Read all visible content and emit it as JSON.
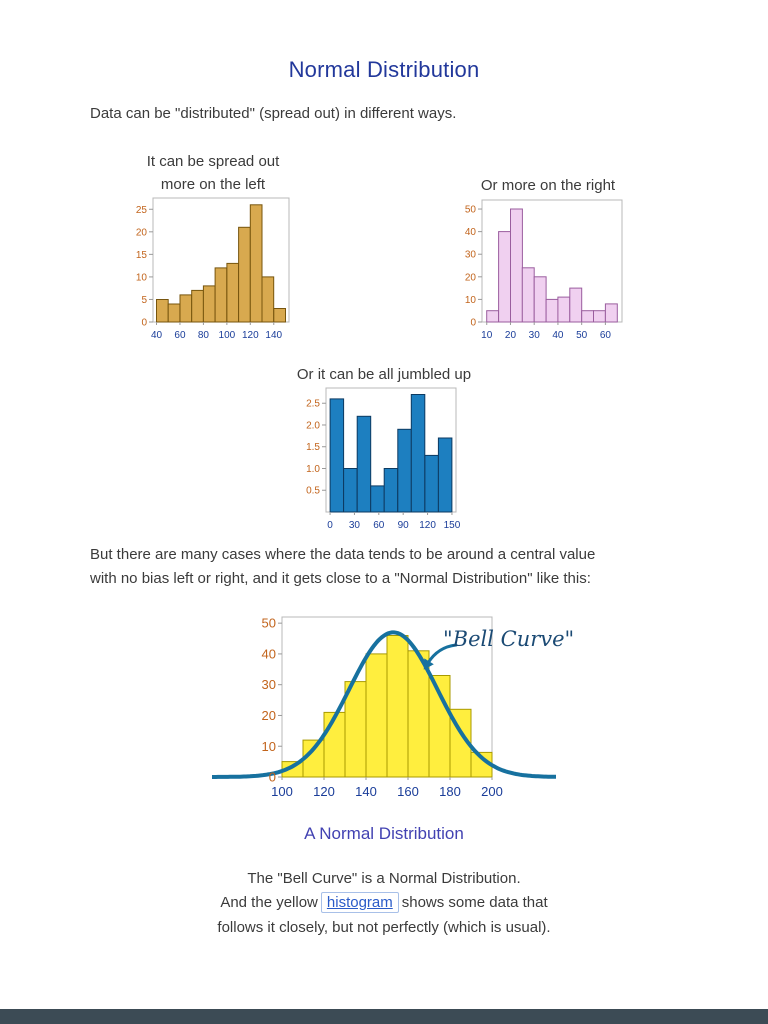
{
  "page": {
    "title": "Normal Distribution",
    "intro": "Data can be \"distributed\" (spread out) in different ways.",
    "central_line1": "But there are many cases where the data tends to be around a central value",
    "central_line2": "with no bias left or right, and it gets close to a \"Normal Distribution\" like this:",
    "outro_line1": "The \"Bell Curve\" is a Normal Distribution.",
    "outro_line2_pre": "And the yellow",
    "outro_link": "histogram",
    "outro_line2_post": "shows some data that",
    "outro_line3": "follows it closely, but not perfectly (which is usual)."
  },
  "colors": {
    "title_blue": "#22389b",
    "body_text": "#3b3b3b",
    "figure_caption_blue": "#4242b2",
    "link_blue": "#2a5bc8",
    "xtick_navy": "#1a3d99",
    "ytick_orange": "#c2641c",
    "bottom_bar": "#3c4b55"
  },
  "chart_data": [
    {
      "id": "left-skew",
      "type": "bar",
      "title_lines": [
        "It can be spread out",
        "more on the left"
      ],
      "bin_start": 40,
      "bin_width": 10,
      "values": [
        5,
        4,
        6,
        7,
        8,
        12,
        13,
        21,
        26,
        10,
        3
      ],
      "xticks": [
        40,
        60,
        80,
        100,
        120,
        140
      ],
      "yticks": [
        0,
        5,
        10,
        15,
        20,
        25
      ],
      "xlim": [
        37,
        153
      ],
      "ylim": [
        0,
        27.5
      ],
      "bar_fill": "#d8a94f",
      "bar_stroke": "#77550e"
    },
    {
      "id": "right-skew",
      "type": "bar",
      "title": "Or more on the right",
      "bin_start": 10,
      "bin_width": 5,
      "values": [
        5,
        40,
        50,
        24,
        20,
        10,
        11,
        15,
        5,
        5,
        8
      ],
      "xticks": [
        10,
        20,
        30,
        40,
        50,
        60
      ],
      "yticks": [
        0,
        10,
        20,
        30,
        40,
        50
      ],
      "xlim": [
        8,
        67
      ],
      "ylim": [
        0,
        54
      ],
      "bar_fill": "#f0d0f0",
      "bar_stroke": "#9a5d9e"
    },
    {
      "id": "jumbled",
      "type": "bar",
      "title": "Or it can be all jumbled up",
      "bin_start": 0,
      "bin_width": 16.67,
      "values": [
        2.6,
        1.0,
        2.2,
        0.6,
        1.0,
        1.9,
        2.7,
        1.3,
        1.7
      ],
      "xticks": [
        0,
        30,
        60,
        90,
        120,
        150
      ],
      "yticks": [
        0.5,
        1.0,
        1.5,
        2.0,
        2.5
      ],
      "ydp": 1,
      "xlim": [
        -5,
        155
      ],
      "ylim": [
        0,
        2.85
      ],
      "bar_fill": "#1d7fc0",
      "bar_stroke": "#0d3a61"
    },
    {
      "id": "normal",
      "type": "bar+curve",
      "title": "A Normal Distribution",
      "annotation": "\"Bell Curve\"",
      "bin_start": 100,
      "bin_width": 10,
      "values": [
        5,
        12,
        21,
        31,
        40,
        46,
        41,
        33,
        22,
        8
      ],
      "xticks": [
        100,
        120,
        140,
        160,
        180,
        200
      ],
      "yticks": [
        0,
        10,
        20,
        30,
        40,
        50
      ],
      "xlim": [
        100,
        200
      ],
      "ylim": [
        0,
        52
      ],
      "bar_fill": "#ffee3e",
      "bar_stroke": "#a89a00",
      "curve": {
        "mean": 153,
        "sd": 21,
        "peak": 47,
        "color": "#17719f",
        "width": 4
      }
    }
  ]
}
